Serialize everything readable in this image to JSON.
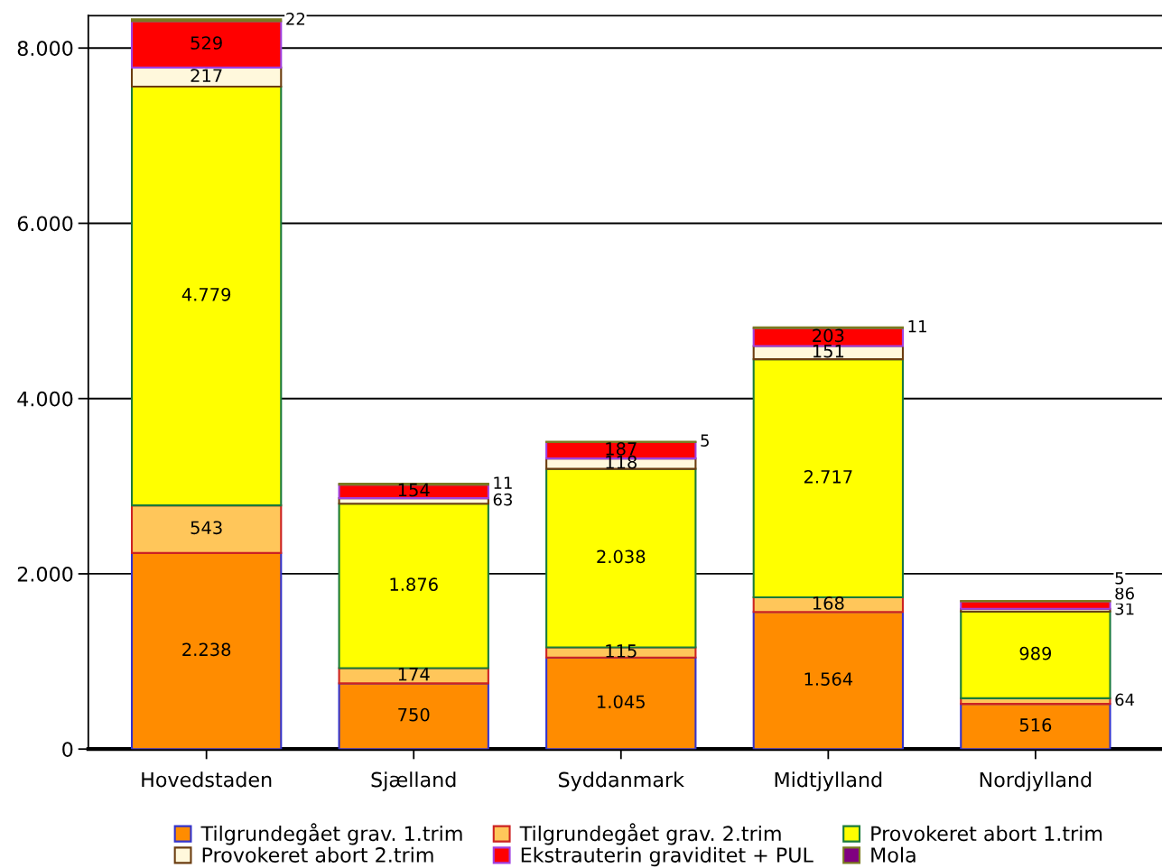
{
  "chart_data": {
    "type": "bar",
    "stacked": true,
    "categories": [
      "Hovedstaden",
      "Sjælland",
      "Syddanmark",
      "Midtjylland",
      "Nordjylland"
    ],
    "series": [
      {
        "name": "Tilgrundegået grav. 1.trim",
        "color": "#ff8c00",
        "values": [
          2238,
          750,
          1045,
          1564,
          516
        ],
        "value_labels": [
          "2.238",
          "750",
          "1.045",
          "1.564",
          "516"
        ]
      },
      {
        "name": "Tilgrundegået grav. 2.trim",
        "color": "#ffc65a",
        "values": [
          543,
          174,
          115,
          168,
          64
        ],
        "value_labels": [
          "543",
          "174",
          "115",
          "168",
          "64"
        ]
      },
      {
        "name": "Provokeret abort 1.trim",
        "color": "#ffff00",
        "values": [
          4779,
          1876,
          2038,
          2717,
          989
        ],
        "value_labels": [
          "4.779",
          "1.876",
          "2.038",
          "2.717",
          "989"
        ]
      },
      {
        "name": "Provokeret abort 2.trim",
        "color": "#fff8dc",
        "values": [
          217,
          63,
          118,
          151,
          31
        ],
        "value_labels": [
          "217",
          "63",
          "118",
          "151",
          "31"
        ]
      },
      {
        "name": "Ekstrauterin graviditet + PUL",
        "color": "#ff0000",
        "values": [
          529,
          154,
          187,
          203,
          86
        ],
        "value_labels": [
          "529",
          "154",
          "187",
          "203",
          "86"
        ]
      },
      {
        "name": "Mola",
        "color": "#800080",
        "values": [
          22,
          11,
          5,
          11,
          5
        ],
        "value_labels": [
          "22",
          "11",
          "5",
          "11",
          "5"
        ]
      }
    ],
    "ylim": [
      0,
      8370
    ],
    "yticks": [
      {
        "value": 0,
        "label": "0"
      },
      {
        "value": 2000,
        "label": "2.000"
      },
      {
        "value": 4000,
        "label": "4.000"
      },
      {
        "value": 6000,
        "label": "6.000"
      },
      {
        "value": 8000,
        "label": "8.000"
      }
    ],
    "grid": "y",
    "legend": "bottom"
  }
}
